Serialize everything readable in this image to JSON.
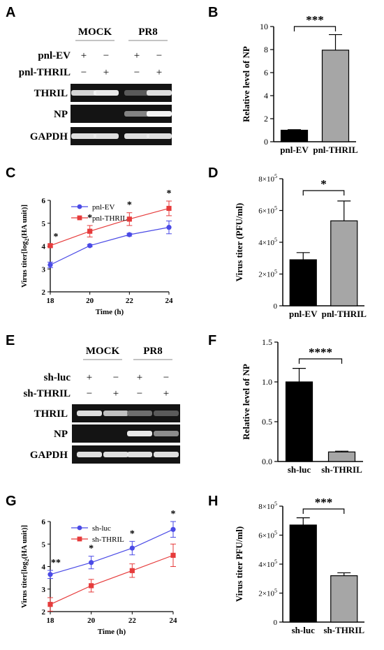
{
  "panel_labels": [
    "A",
    "B",
    "C",
    "D",
    "E",
    "F",
    "G",
    "H"
  ],
  "gels": [
    {
      "panel": "A",
      "groups": [
        "MOCK",
        "PR8"
      ],
      "conditions": [
        {
          "name": "pnl-EV",
          "signs": [
            "+",
            "−",
            "+",
            "−"
          ]
        },
        {
          "name": "pnl-THRIL",
          "signs": [
            "−",
            "+",
            "−",
            "+"
          ]
        }
      ],
      "rows": [
        {
          "name": "THRIL",
          "intensity": [
            0.85,
            0.95,
            0.25,
            0.9
          ]
        },
        {
          "name": "NP",
          "intensity": [
            0,
            0,
            0.45,
            1.0
          ]
        },
        {
          "name": "GAPDH",
          "intensity": [
            0.9,
            0.9,
            0.9,
            0.9
          ]
        }
      ]
    },
    {
      "panel": "E",
      "groups": [
        "MOCK",
        "PR8"
      ],
      "conditions": [
        {
          "name": "sh-luc",
          "signs": [
            "+",
            "−",
            "+",
            "−"
          ]
        },
        {
          "name": "sh-THRIL",
          "signs": [
            "−",
            "+",
            "−",
            "+"
          ]
        }
      ],
      "rows": [
        {
          "name": "THRIL",
          "intensity": [
            0.9,
            0.75,
            0.35,
            0.25
          ]
        },
        {
          "name": "NP",
          "intensity": [
            0,
            0,
            0.95,
            0.5
          ]
        },
        {
          "name": "GAPDH",
          "intensity": [
            0.9,
            0.9,
            0.9,
            0.9
          ]
        }
      ]
    }
  ],
  "chart_data": [
    {
      "panel": "B",
      "type": "bar",
      "categories": [
        "pnl-EV",
        "pnl-THRIL"
      ],
      "values": [
        1.0,
        7.95
      ],
      "errors": [
        0.05,
        1.35
      ],
      "colors": [
        "#000000",
        "#a6a6a6"
      ],
      "ylabel": "Relative  level of NP",
      "xlabel": "",
      "ylim": [
        0,
        10
      ],
      "yticks": [
        "0",
        "2",
        "4",
        "6",
        "8",
        "10"
      ],
      "significance": "***"
    },
    {
      "panel": "C",
      "type": "line",
      "x": [
        18,
        20,
        22,
        24
      ],
      "series": [
        {
          "name": "pnl-EV",
          "color": "#4a4ae6",
          "marker": "circle",
          "values": [
            3.18,
            4.02,
            4.5,
            4.82
          ],
          "errors": [
            0.12,
            0.05,
            0.06,
            0.28
          ]
        },
        {
          "name": "pnl-THRIL",
          "color": "#e63b3b",
          "marker": "square",
          "values": [
            4.02,
            4.65,
            5.18,
            5.65
          ],
          "errors": [
            0.06,
            0.25,
            0.28,
            0.32
          ]
        }
      ],
      "significance": [
        "*",
        "*",
        "*",
        "*"
      ],
      "xlabel": "Time (h)",
      "ylabel_main": "Virus titer[log",
      "ylabel_sub": "2",
      "ylabel_rest": "(HA unit)]",
      "xlim": [
        18,
        24
      ],
      "ylim": [
        2,
        6
      ],
      "xticks": [
        "18",
        "20",
        "22",
        "24"
      ],
      "yticks": [
        "2",
        "3",
        "4",
        "5",
        "6"
      ],
      "legend": "top-left"
    },
    {
      "panel": "D",
      "type": "bar",
      "categories": [
        "pnl-EV",
        "pnl-THRIL"
      ],
      "values": [
        290000,
        535000
      ],
      "errors": [
        45000,
        125000
      ],
      "colors": [
        "#000000",
        "#a6a6a6"
      ],
      "ylabel": "Virus titer (PFU/ml)",
      "xlabel": "",
      "ylim": [
        0,
        800000
      ],
      "yticks": [
        {
          "m": "0",
          "e": ""
        },
        {
          "m": "2×10",
          "e": "5"
        },
        {
          "m": "4×10",
          "e": "5"
        },
        {
          "m": "6×10",
          "e": "5"
        },
        {
          "m": "8×10",
          "e": "5"
        }
      ],
      "significance": "*"
    },
    {
      "panel": "F",
      "type": "bar",
      "categories": [
        "sh-luc",
        "sh-THRIL"
      ],
      "values": [
        1.0,
        0.12
      ],
      "errors": [
        0.17,
        0.01
      ],
      "colors": [
        "#000000",
        "#a6a6a6"
      ],
      "ylabel": "Relative  level of NP",
      "xlabel": "",
      "ylim": [
        0,
        1.5
      ],
      "yticks": [
        "0.0",
        "0.5",
        "1.0",
        "1.5"
      ],
      "significance": "****"
    },
    {
      "panel": "G",
      "type": "line",
      "x": [
        18,
        20,
        22,
        24
      ],
      "series": [
        {
          "name": "sh-luc",
          "color": "#4a4ae6",
          "marker": "circle",
          "values": [
            3.65,
            4.18,
            4.82,
            5.65
          ],
          "errors": [
            0.18,
            0.28,
            0.3,
            0.35
          ]
        },
        {
          "name": "sh-THRIL",
          "color": "#e63b3b",
          "marker": "square",
          "values": [
            2.32,
            3.15,
            3.82,
            4.5
          ],
          "errors": [
            0.3,
            0.28,
            0.3,
            0.5
          ]
        }
      ],
      "significance": [
        "**",
        "*",
        "*",
        "*"
      ],
      "xlabel": "Time (h)",
      "ylabel_main": "Virus titer[log",
      "ylabel_sub": "2",
      "ylabel_rest": "(HA unit)]",
      "xlim": [
        18,
        24
      ],
      "ylim": [
        2,
        6
      ],
      "xticks": [
        "18",
        "20",
        "22",
        "24"
      ],
      "yticks": [
        "2",
        "3",
        "4",
        "5",
        "6"
      ],
      "legend": "top-left"
    },
    {
      "panel": "H",
      "type": "bar",
      "categories": [
        "sh-luc",
        "sh-THRIL"
      ],
      "values": [
        670000,
        320000
      ],
      "errors": [
        50000,
        20000
      ],
      "colors": [
        "#000000",
        "#a6a6a6"
      ],
      "ylabel": "Virus titer PFU/ml)",
      "xlabel": "",
      "ylim": [
        0,
        800000
      ],
      "yticks": [
        {
          "m": "0",
          "e": ""
        },
        {
          "m": "2×10",
          "e": "5"
        },
        {
          "m": "4×10",
          "e": "5"
        },
        {
          "m": "6×10",
          "e": "5"
        },
        {
          "m": "8×10",
          "e": "5"
        }
      ],
      "significance": "***"
    }
  ]
}
